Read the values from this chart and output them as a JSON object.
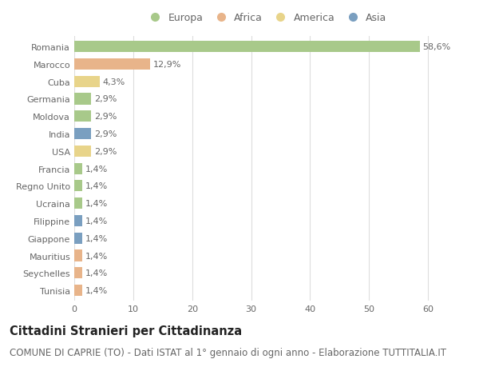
{
  "countries": [
    "Romania",
    "Marocco",
    "Cuba",
    "Germania",
    "Moldova",
    "India",
    "USA",
    "Francia",
    "Regno Unito",
    "Ucraina",
    "Filippine",
    "Giappone",
    "Mauritius",
    "Seychelles",
    "Tunisia"
  ],
  "values": [
    58.6,
    12.9,
    4.3,
    2.9,
    2.9,
    2.9,
    2.9,
    1.4,
    1.4,
    1.4,
    1.4,
    1.4,
    1.4,
    1.4,
    1.4
  ],
  "labels": [
    "58,6%",
    "12,9%",
    "4,3%",
    "2,9%",
    "2,9%",
    "2,9%",
    "2,9%",
    "1,4%",
    "1,4%",
    "1,4%",
    "1,4%",
    "1,4%",
    "1,4%",
    "1,4%",
    "1,4%"
  ],
  "continents": [
    "Europa",
    "Africa",
    "America",
    "Europa",
    "Europa",
    "Asia",
    "America",
    "Europa",
    "Europa",
    "Europa",
    "Asia",
    "Asia",
    "Africa",
    "Africa",
    "Africa"
  ],
  "colors": {
    "Europa": "#a8c98a",
    "Africa": "#e8b48a",
    "America": "#e8d48a",
    "Asia": "#7a9fc0"
  },
  "xlim": [
    0,
    65
  ],
  "xticks": [
    0,
    10,
    20,
    30,
    40,
    50,
    60
  ],
  "background_color": "#ffffff",
  "grid_color": "#dddddd",
  "title": "Cittadini Stranieri per Cittadinanza",
  "subtitle": "COMUNE DI CAPRIE (TO) - Dati ISTAT al 1° gennaio di ogni anno - Elaborazione TUTTITALIA.IT",
  "title_fontsize": 10.5,
  "subtitle_fontsize": 8.5,
  "label_fontsize": 8,
  "tick_fontsize": 8,
  "bar_height": 0.65,
  "legend_order": [
    "Europa",
    "Africa",
    "America",
    "Asia"
  ]
}
